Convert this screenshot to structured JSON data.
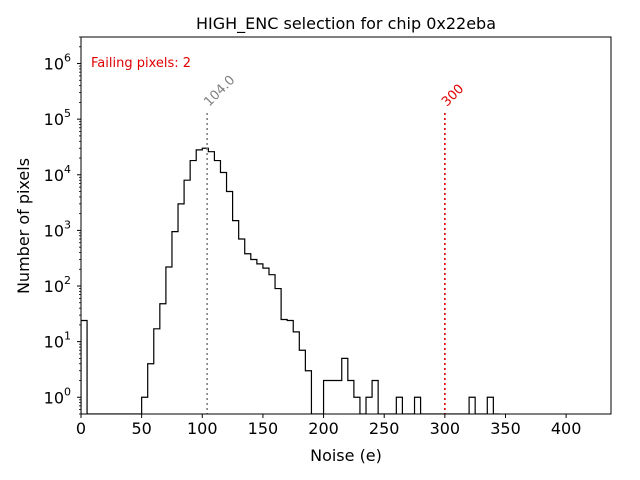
{
  "chart_data": {
    "type": "histogram",
    "title": "HIGH_ENC selection for chip 0x22eba",
    "xlabel": "Noise (e)",
    "ylabel": "Number of pixels",
    "xlim": [
      0,
      437
    ],
    "ylim": [
      0.5,
      3000000
    ],
    "yscale": "log",
    "grid": false,
    "xticks": [
      0,
      50,
      100,
      150,
      200,
      250,
      300,
      350,
      400
    ],
    "yticks": [
      {
        "base": "10",
        "exp": "0",
        "value": 1
      },
      {
        "base": "10",
        "exp": "1",
        "value": 10
      },
      {
        "base": "10",
        "exp": "2",
        "value": 100
      },
      {
        "base": "10",
        "exp": "3",
        "value": 1000
      },
      {
        "base": "10",
        "exp": "4",
        "value": 10000
      },
      {
        "base": "10",
        "exp": "5",
        "value": 100000
      },
      {
        "base": "10",
        "exp": "6",
        "value": 1000000
      }
    ],
    "bin_width": 5,
    "bins_start": [
      0,
      5,
      10,
      15,
      20,
      25,
      30,
      35,
      40,
      45,
      50,
      55,
      60,
      65,
      70,
      75,
      80,
      85,
      90,
      95,
      100,
      105,
      110,
      115,
      120,
      125,
      130,
      135,
      140,
      145,
      150,
      155,
      160,
      165,
      170,
      175,
      180,
      185,
      190,
      195,
      200,
      205,
      210,
      215,
      220,
      225,
      230,
      235,
      240,
      245,
      250,
      255,
      260,
      265,
      270,
      275,
      280,
      285,
      290,
      295,
      300,
      305,
      310,
      315,
      320,
      325,
      330,
      335,
      340
    ],
    "counts": [
      24,
      0,
      0,
      0,
      0,
      0,
      0,
      0,
      0,
      0,
      1,
      4,
      17,
      48,
      220,
      950,
      3000,
      8000,
      18000,
      28000,
      30000,
      26000,
      18000,
      11000,
      5000,
      1500,
      700,
      380,
      300,
      250,
      210,
      160,
      90,
      25,
      24,
      15,
      7,
      3,
      0.5,
      0.5,
      2,
      2,
      2,
      5,
      2,
      1,
      0.5,
      1,
      2,
      0.5,
      0.5,
      0.5,
      1,
      0.5,
      0.5,
      1,
      0.5,
      0.5,
      0.5,
      0.5,
      0.5,
      0.5,
      0.5,
      0.5,
      1,
      0.5,
      0.5,
      1,
      0.5
    ],
    "mean_line": {
      "x": 104.0,
      "label": "104.0",
      "color": "#808080"
    },
    "threshold_line": {
      "x": 300,
      "label": "300",
      "color": "#e00000"
    },
    "annotation": {
      "text": "Failing pixels: 2",
      "color": "#e00000"
    },
    "line_color": "#000000"
  }
}
